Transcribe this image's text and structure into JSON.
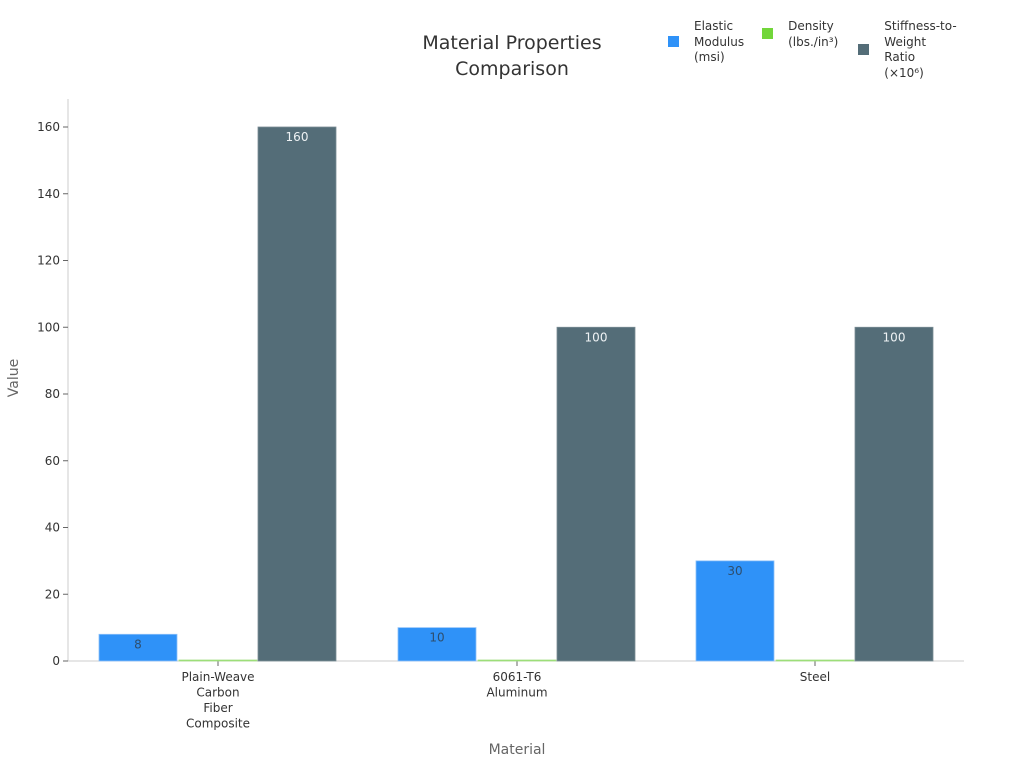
{
  "chart_data": {
    "type": "bar",
    "title": "Material Properties\nComparison",
    "xlabel": "Material",
    "ylabel": "Value",
    "ylim": [
      0,
      168
    ],
    "yticks": [
      0,
      20,
      40,
      60,
      80,
      100,
      120,
      140,
      160
    ],
    "grid": false,
    "legend_position": "top-right",
    "categories": [
      "Plain-Weave\nCarbon\nFiber\nComposite",
      "6061-T6\nAluminum",
      "Steel"
    ],
    "series": [
      {
        "name": "Elastic\nModulus\n(msi)",
        "color": "#2f92f8",
        "values": [
          8,
          10,
          30
        ],
        "labels": [
          "8",
          "10",
          "30"
        ]
      },
      {
        "name": "Density\n(lbs./in³)",
        "color": "#72d63a",
        "values": [
          0.06,
          0.1,
          0.28
        ],
        "labels": [
          "",
          "",
          ""
        ]
      },
      {
        "name": "Stiffness-to-\nWeight\nRatio\n(×10⁶)",
        "color": "#546d78",
        "values": [
          160,
          100,
          100
        ],
        "labels": [
          "160",
          "100",
          "100"
        ]
      }
    ]
  }
}
